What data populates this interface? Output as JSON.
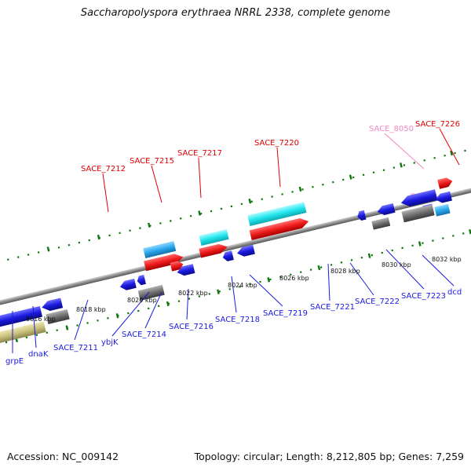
{
  "title": "Saccharopolyspora erythraea NRRL 2338, complete genome",
  "footer": {
    "accession_label": "Accession:",
    "accession": "NC_009142",
    "topology_label": "Topology:",
    "topology": "circular",
    "length_label": "Length:",
    "length": "8,212,805 bp",
    "genes_label": "Genes:",
    "genes": "7,259"
  },
  "ticks": [
    "8016 kbp",
    "8018 kbp",
    "8020 kbp",
    "8022 kbp",
    "8024 kbp",
    "8026 kbp",
    "8028 kbp",
    "8030 kbp",
    "8032 kbp"
  ],
  "top_labels": [
    "SACE_7212",
    "SACE_7215",
    "SACE_7217",
    "SACE_7220",
    "SACE_8050",
    "SACE_7226"
  ],
  "bottom_labels": [
    "grpE",
    "dnaK",
    "SACE_7211",
    "ybjK",
    "SACE_7214",
    "SACE_7216",
    "SACE_7218",
    "SACE_7219",
    "SACE_7221",
    "SACE_7222",
    "SACE_7223",
    "dcd"
  ],
  "colors": {
    "red": "#ee1c1c",
    "blue": "#1a1adf",
    "cyan": "#22e6ee",
    "sky": "#29a8ee",
    "gray": "#6f6f6f",
    "olive": "#c8c07a",
    "pink": "#f08ac0",
    "green": "#117711",
    "backbone": "#8c8c8c"
  }
}
